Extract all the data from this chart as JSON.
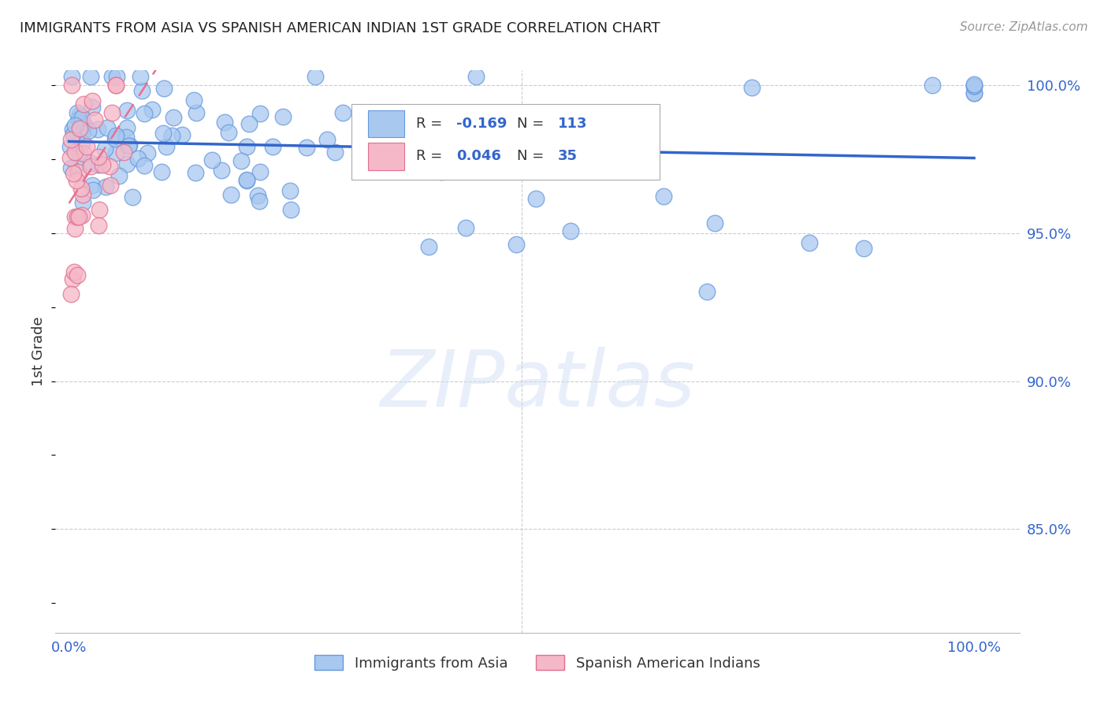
{
  "title": "IMMIGRANTS FROM ASIA VS SPANISH AMERICAN INDIAN 1ST GRADE CORRELATION CHART",
  "source": "Source: ZipAtlas.com",
  "ylabel": "1st Grade",
  "y_min": 0.815,
  "y_max": 1.005,
  "blue_R": -0.169,
  "blue_N": 113,
  "pink_R": 0.046,
  "pink_N": 35,
  "blue_color": "#a8c8f0",
  "pink_color": "#f5b8c8",
  "blue_edge_color": "#6699dd",
  "pink_edge_color": "#e07090",
  "blue_line_color": "#3366cc",
  "pink_line_color": "#e87090",
  "right_ytick_labels": [
    "85.0%",
    "90.0%",
    "95.0%",
    "100.0%"
  ],
  "right_yticks": [
    0.85,
    0.9,
    0.95,
    1.0
  ],
  "watermark": "ZIPatlas",
  "legend_label_blue": "Immigrants from Asia",
  "legend_label_pink": "Spanish American Indians",
  "blue_R_str": "-0.169",
  "blue_N_str": "113",
  "pink_R_str": "0.046",
  "pink_N_str": "35"
}
